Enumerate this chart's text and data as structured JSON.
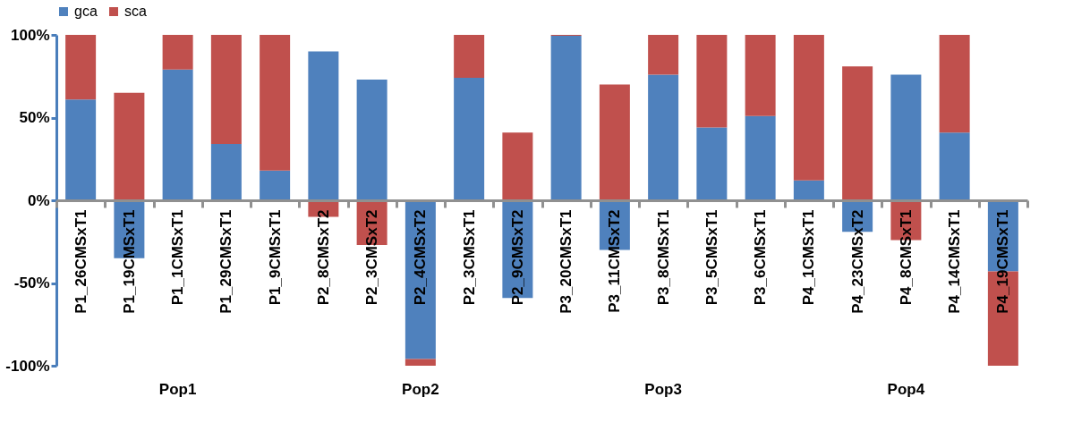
{
  "chart_data": {
    "type": "bar",
    "stacked": true,
    "categories": [
      "P1_26CMSxT1",
      "P1_19CMSxT1",
      "P1_1CMSxT1",
      "P1_29CMSxT1",
      "P1_9CMSxT1",
      "P2_8CMSxT2",
      "P2_3CMSxT2",
      "P2_4CMSxT2",
      "P2_3CMSxT1",
      "P2_9CMSxT2",
      "P3_20CMSxT1",
      "P3_11CMSxT2",
      "P3_8CMSxT1",
      "P3_5CMSxT1",
      "P3_6CMSxT1",
      "P4_1CMSxT1",
      "P4_23CMSxT2",
      "P4_8CMSxT1",
      "P4_14CMSxT1",
      "P4_19CMSxT1"
    ],
    "series": [
      {
        "name": "gca",
        "color": "#4f81bd",
        "values": [
          61,
          -35,
          79,
          34,
          18,
          90,
          73,
          -96,
          74,
          -59,
          99.5,
          -30,
          76,
          44,
          51,
          12,
          -19,
          76,
          41,
          -43
        ]
      },
      {
        "name": "sca",
        "color": "#c0504d",
        "values": [
          39,
          65,
          21,
          66,
          82,
          -10,
          -27,
          -4,
          26,
          41,
          0.5,
          70,
          24,
          56,
          49,
          88,
          81,
          -24,
          59,
          -57
        ]
      }
    ],
    "annotations": [
      "Pop1",
      "Pop2",
      "Pop3",
      "Pop4"
    ],
    "ylim": [
      -100,
      100
    ],
    "yticks": [
      {
        "value": -100,
        "label": "-100%"
      },
      {
        "value": -50,
        "label": "-50%"
      },
      {
        "value": 0,
        "label": "0%"
      },
      {
        "value": 50,
        "label": "50%"
      },
      {
        "value": 100,
        "label": "100%"
      }
    ],
    "grid": false,
    "legend": "top"
  }
}
